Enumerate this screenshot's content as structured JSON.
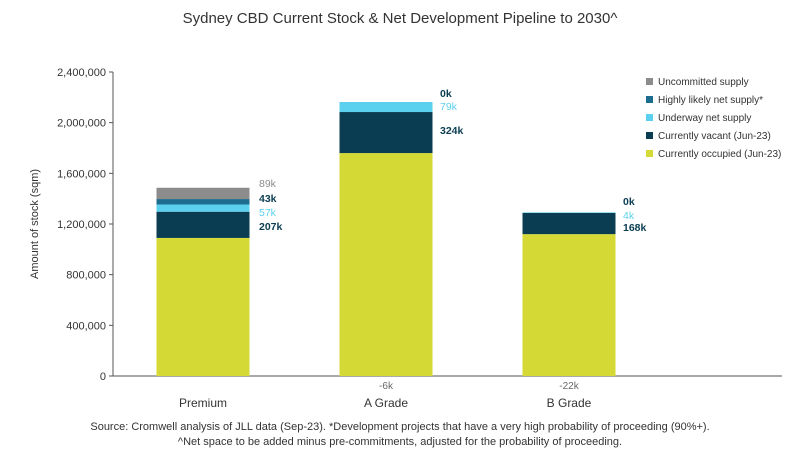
{
  "chart_data": {
    "type": "bar",
    "stacked": true,
    "title": "Sydney CBD Current Stock & Net Development Pipeline to 2030^",
    "ylabel": "Amount of stock (sqm)",
    "xlabel": "",
    "ylim": [
      0,
      2400000
    ],
    "yticks": [
      {
        "value": 0,
        "label": "0"
      },
      {
        "value": 400000,
        "label": "400,000"
      },
      {
        "value": 800000,
        "label": "800,000"
      },
      {
        "value": 1200000,
        "label": "1,200,000"
      },
      {
        "value": 1600000,
        "label": "1,600,000"
      },
      {
        "value": 2000000,
        "label": "2,000,000"
      },
      {
        "value": 2400000,
        "label": "2,400,000"
      }
    ],
    "categories": [
      "Premium",
      "A Grade",
      "B Grade"
    ],
    "series": [
      {
        "name": "Currently occupied (Jun-23)",
        "color": "#d4d935",
        "values": [
          1090000,
          1760000,
          1120000
        ],
        "labels": [
          "",
          "",
          ""
        ]
      },
      {
        "name": "Currently vacant (Jun-23)",
        "color": "#0b3d52",
        "values": [
          207000,
          324000,
          168000
        ],
        "labels": [
          "207k",
          "324k",
          "168k"
        ]
      },
      {
        "name": "Underway net supply",
        "color": "#5bd0ef",
        "values": [
          57000,
          79000,
          4000
        ],
        "labels": [
          "57k",
          "79k",
          "4k"
        ]
      },
      {
        "name": "Highly likely net supply*",
        "color": "#1d6e8e",
        "values": [
          43000,
          0,
          0
        ],
        "labels": [
          "43k",
          "0k",
          "0k"
        ]
      },
      {
        "name": "Uncommitted supply",
        "color": "#8c8c8c",
        "values": [
          89000,
          0,
          0
        ],
        "labels": [
          "89k",
          "",
          ""
        ]
      }
    ],
    "label_colors": [
      "#333333",
      "#0b3d52",
      "#5bd0ef",
      "#0b3d52",
      "#8c8c8c"
    ],
    "below_axis_labels": [
      "",
      "-6k",
      "-22k"
    ],
    "legend": {
      "position": "top-right",
      "order": [
        "Uncommitted supply",
        "Highly likely net supply*",
        "Underway net supply",
        "Currently vacant (Jun-23)",
        "Currently occupied (Jun-23)"
      ]
    }
  },
  "source_line1": "Source: Cromwell analysis of JLL data (Sep-23). *Development projects that have a very high probability of proceeding (90%+).",
  "source_line2": "^Net space to be added minus pre-commitments, adjusted for the probability of proceeding."
}
